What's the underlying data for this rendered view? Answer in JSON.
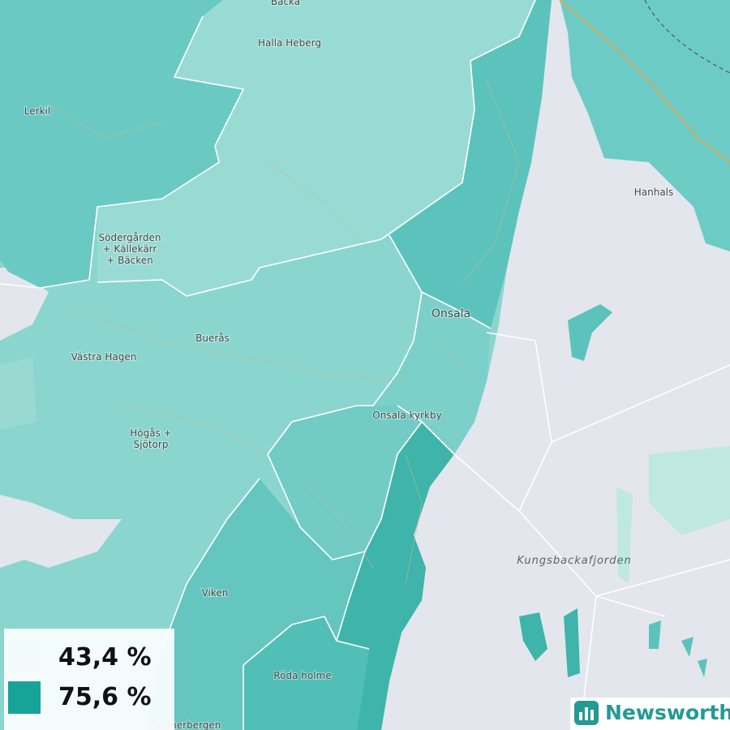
{
  "places": [
    {
      "label": "Backa"
    },
    {
      "label": "Halla Heberg"
    },
    {
      "label": "Lerkil"
    },
    {
      "label": "Hanhals"
    },
    {
      "label": [
        "Södergården",
        "+ Källekärr",
        "+ Bäcken"
      ]
    },
    {
      "label": "Onsala"
    },
    {
      "label": "Buerås"
    },
    {
      "label": "Västra Hagen"
    },
    {
      "label": "Onsala kyrkby"
    },
    {
      "label": [
        "Högås +",
        "Sjötorp"
      ]
    },
    {
      "label": "Viken"
    },
    {
      "label": "Röda holme"
    },
    {
      "label": "Sönnerbergen"
    }
  ],
  "water_label": "Kungsbackafjorden",
  "legend": {
    "items": [
      {
        "label": "43,4 %",
        "color": "#f3fbfa"
      },
      {
        "label": "75,6 %",
        "color": "#17a398"
      }
    ]
  },
  "brand": "Newsworthy"
}
